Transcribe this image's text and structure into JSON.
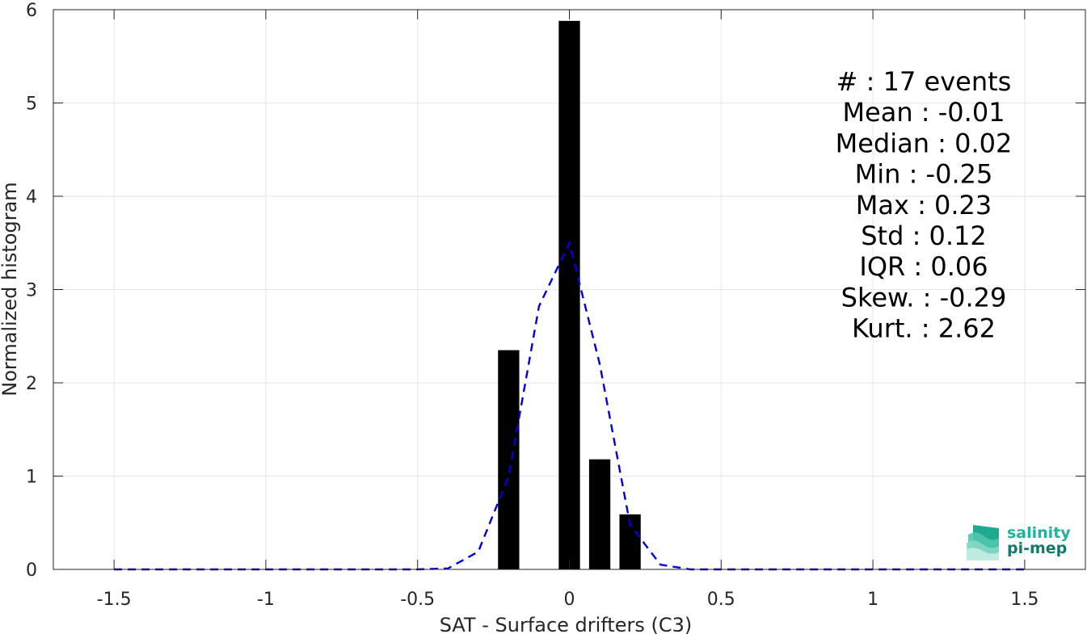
{
  "chart_data": {
    "type": "bar",
    "xlabel": "SAT - Surface drifters (C3)",
    "ylabel": "Normalized histogram",
    "xlim": [
      -1.7,
      1.7
    ],
    "ylim": [
      0,
      6
    ],
    "xticks": [
      -1.5,
      -1,
      -0.5,
      0,
      0.5,
      1,
      1.5
    ],
    "xtick_labels": [
      "-1.5",
      "-1",
      "-0.5",
      "0",
      "0.5",
      "1",
      "1.5"
    ],
    "yticks": [
      0,
      1,
      2,
      3,
      4,
      5,
      6
    ],
    "ytick_labels": [
      "0",
      "1",
      "2",
      "3",
      "4",
      "5",
      "6"
    ],
    "grid": true,
    "bars": {
      "color": "#000000",
      "bin_width": 0.1,
      "bar_width": 0.07,
      "x": [
        -0.2,
        0.0,
        0.1,
        0.2
      ],
      "values": [
        2.35,
        5.88,
        1.18,
        0.59
      ]
    },
    "fit_line": {
      "style": "dashed",
      "color": "#0000dd",
      "x": [
        -1.5,
        -1.4,
        -1.3,
        -1.2,
        -1.1,
        -1.0,
        -0.9,
        -0.8,
        -0.7,
        -0.6,
        -0.5,
        -0.4,
        -0.3,
        -0.2,
        -0.1,
        0.0,
        0.1,
        0.2,
        0.3,
        0.4,
        0.5,
        0.6,
        0.7,
        0.8,
        0.9,
        1.0,
        1.1,
        1.2,
        1.3,
        1.4,
        1.5
      ],
      "y": [
        0,
        0,
        0,
        0,
        0,
        0,
        0,
        0,
        0,
        0,
        0,
        0.01,
        0.19,
        1.0,
        2.82,
        3.5,
        2.2,
        0.48,
        0.05,
        0,
        0,
        0,
        0,
        0,
        0,
        0,
        0,
        0,
        0,
        0,
        0
      ]
    },
    "stats": [
      {
        "label": "#  ",
        "value": " : 17 events"
      },
      {
        "label": "Mean",
        "value": " : -0.01"
      },
      {
        "label": "Median",
        "value": " : 0.02"
      },
      {
        "label": "Min",
        "value": " : -0.25"
      },
      {
        "label": "Max",
        "value": " : 0.23"
      },
      {
        "label": "Std",
        "value": " : 0.12"
      },
      {
        "label": "IQR",
        "value": " : 0.06"
      },
      {
        "label": "Skew.",
        "value": " : -0.29"
      },
      {
        "label": "Kurt.",
        "value": " : 2.62"
      }
    ]
  },
  "logo": {
    "line1": "salinity",
    "line2": "pi-mep",
    "color_line1": "#1ab59a",
    "color_line2": "#127a6a"
  }
}
